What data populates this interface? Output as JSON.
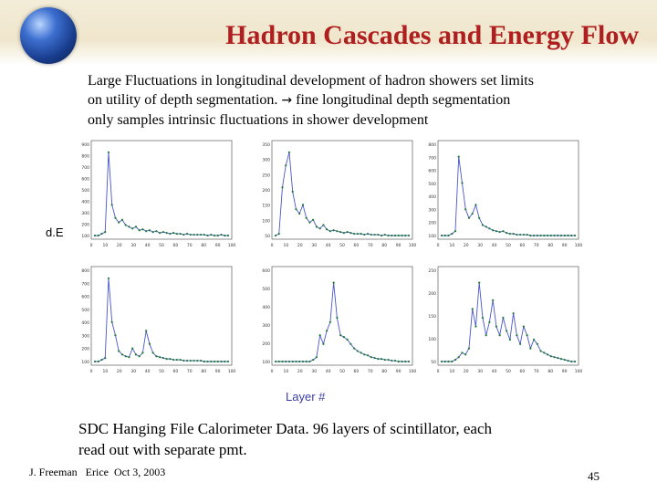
{
  "header": {
    "title": "Hadron Cascades and Energy Flow"
  },
  "intro": {
    "line1": "Large Fluctuations in longitudinal development of hadron showers set limits",
    "line2": "on utility of depth segmentation.",
    "arrow_glyph": "→",
    "line2_rest": " fine longitudinal depth segmentation",
    "line3": "only samples intrinsic fluctuations in shower development"
  },
  "axis_labels": {
    "y": "d.E",
    "x": "Layer #"
  },
  "plots": {
    "colors": {
      "line": "#4a57c9",
      "marker": "#1f7a35",
      "axis": "#444444"
    },
    "p1": {
      "yticks": [
        "900",
        "800",
        "700",
        "600",
        "500",
        "400",
        "300",
        "200",
        "100"
      ],
      "xticks": [
        "0",
        "10",
        "20",
        "30",
        "40",
        "50",
        "60",
        "70",
        "80",
        "90",
        "100"
      ]
    },
    "p2": {
      "yticks": [
        "350",
        "300",
        "250",
        "200",
        "150",
        "100",
        "50"
      ],
      "xticks": [
        "0",
        "10",
        "20",
        "30",
        "40",
        "50",
        "60",
        "70",
        "80",
        "90",
        "100"
      ]
    },
    "p3": {
      "yticks": [
        "800",
        "700",
        "600",
        "500",
        "400",
        "300",
        "200",
        "100"
      ],
      "xticks": [
        "0",
        "10",
        "20",
        "30",
        "40",
        "50",
        "60",
        "70",
        "80",
        "90",
        "100"
      ]
    },
    "p4": {
      "yticks": [
        "800",
        "700",
        "600",
        "500",
        "400",
        "300",
        "200",
        "100"
      ],
      "xticks": [
        "0",
        "10",
        "20",
        "30",
        "40",
        "50",
        "60",
        "70",
        "80",
        "90",
        "100"
      ]
    },
    "p5": {
      "yticks": [
        "600",
        "500",
        "400",
        "300",
        "200",
        "100"
      ],
      "xticks": [
        "0",
        "10",
        "20",
        "30",
        "40",
        "50",
        "60",
        "70",
        "80",
        "90",
        "100"
      ]
    },
    "p6": {
      "yticks": [
        "250",
        "200",
        "150",
        "100",
        "50"
      ],
      "xticks": [
        "0",
        "10",
        "20",
        "30",
        "40",
        "50",
        "60",
        "70",
        "80",
        "90",
        "100"
      ]
    }
  },
  "bottom": {
    "line1": "SDC Hanging File Calorimeter Data. 96 layers of scintillator, each",
    "line2": "read out with separate pmt."
  },
  "footer": {
    "left": "J. Freeman   Erice  Oct 3, 2003",
    "page": "45"
  }
}
